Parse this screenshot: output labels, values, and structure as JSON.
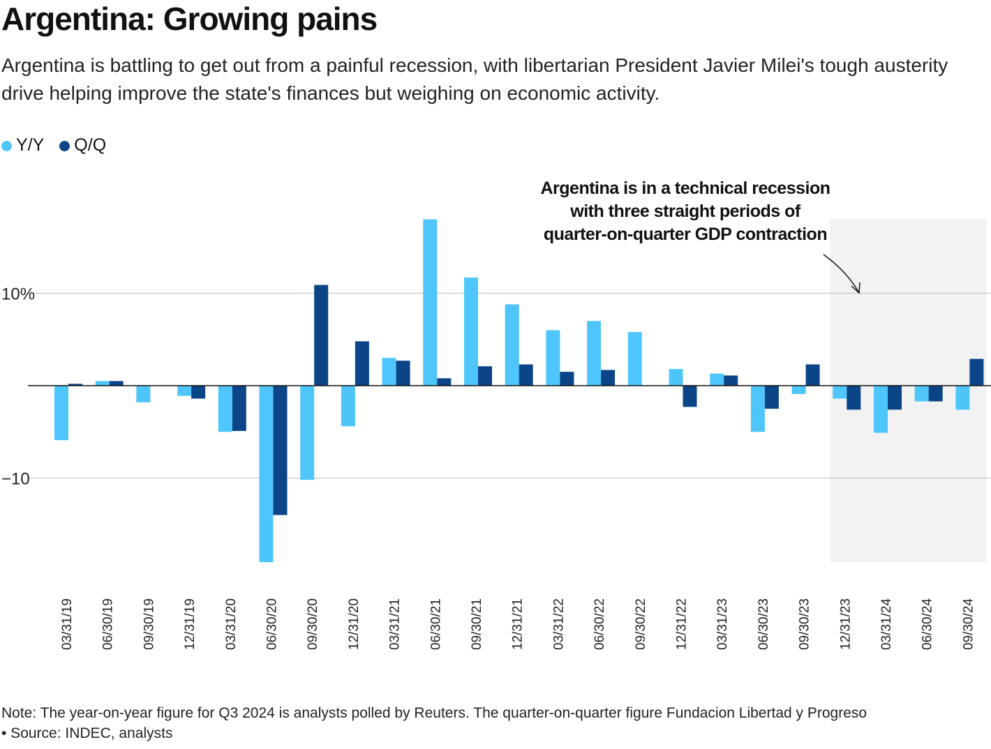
{
  "title": "Argentina: Growing pains",
  "subtitle": "Argentina is battling to get out from a painful recession, with libertarian President Javier Milei's tough austerity drive helping improve the state's finances but weighing on economic activity.",
  "note": "Note: The year-on-year figure for Q3 2024 is analysts polled by Reuters. The quarter-on-quarter figure Fundacion Libertad y Progreso",
  "source": "• Source: INDEC, analysts",
  "colors": {
    "yy": "#4fc6fb",
    "qq": "#0b4587",
    "shade": "#f2f2f2"
  },
  "chart_data": {
    "type": "bar",
    "categories": [
      "03/31/19",
      "06/30/19",
      "09/30/19",
      "12/31/19",
      "03/31/20",
      "06/30/20",
      "09/30/20",
      "12/31/20",
      "03/31/21",
      "06/30/21",
      "09/30/21",
      "12/31/21",
      "03/31/22",
      "06/30/22",
      "09/30/22",
      "12/31/22",
      "03/31/23",
      "06/30/23",
      "09/30/23",
      "12/31/23",
      "03/31/24",
      "06/30/24",
      "09/30/24"
    ],
    "series": [
      {
        "name": "Y/Y",
        "values": [
          -5.9,
          0.5,
          -1.8,
          -1.1,
          -5.0,
          -19.1,
          -10.2,
          -4.4,
          3.0,
          18.0,
          11.7,
          8.8,
          6.0,
          7.0,
          5.8,
          1.8,
          1.3,
          -5.0,
          -0.9,
          -1.4,
          -5.1,
          -1.7,
          -2.6
        ]
      },
      {
        "name": "Q/Q",
        "values": [
          0.2,
          0.5,
          0,
          -1.4,
          -4.9,
          -14.0,
          10.9,
          4.8,
          2.7,
          0.8,
          2.1,
          2.3,
          1.5,
          1.7,
          0,
          -2.3,
          1.1,
          -2.5,
          2.3,
          -2.6,
          -2.6,
          -1.7,
          2.9
        ]
      }
    ],
    "y_ticks": [
      {
        "value": 10,
        "label": "10%"
      },
      {
        "value": -10,
        "label": "−10"
      }
    ],
    "ylim": [
      -21,
      22
    ],
    "grid": true,
    "legend": "top-left",
    "annotation": {
      "text_lines": [
        "Argentina is in a technical recession",
        "with three straight periods of",
        "quarter-on-quarter GDP contraction"
      ],
      "shaded_from": "12/31/23",
      "shaded_to": "09/30/24"
    }
  }
}
